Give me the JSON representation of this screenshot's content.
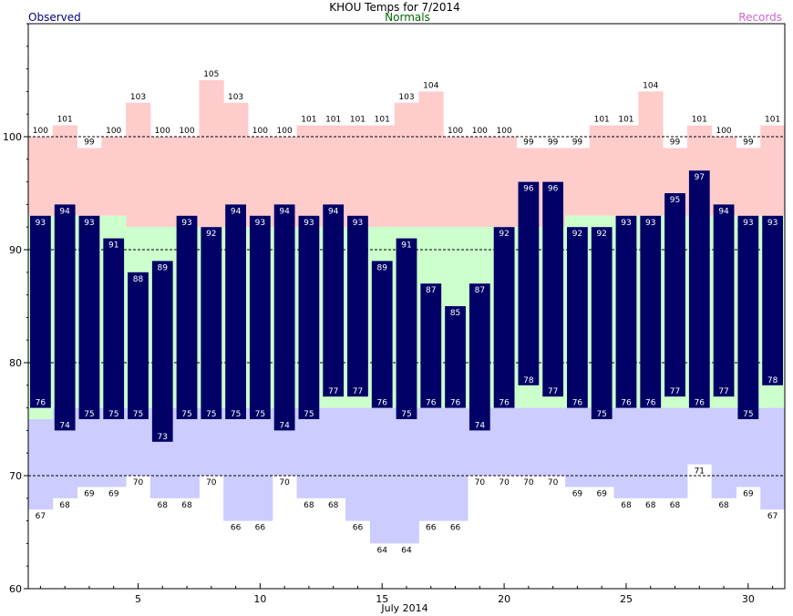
{
  "chart_data": {
    "type": "bar",
    "title": "KHOU Temps for 7/2014",
    "xlabel": "July 2014",
    "ylabel": "",
    "legend": {
      "observed": "Observed",
      "normals": "Normals",
      "records": "Records"
    },
    "ylim": [
      60,
      110
    ],
    "yticks": [
      60,
      70,
      80,
      90,
      100
    ],
    "xticks": [
      5,
      10,
      15,
      20,
      25,
      30
    ],
    "days": [
      1,
      2,
      3,
      4,
      5,
      6,
      7,
      8,
      9,
      10,
      11,
      12,
      13,
      14,
      15,
      16,
      17,
      18,
      19,
      20,
      21,
      22,
      23,
      24,
      25,
      26,
      27,
      28,
      29,
      30,
      31
    ],
    "series": [
      {
        "name": "Observed",
        "key": "obs_high",
        "values": [
          93,
          94,
          93,
          91,
          88,
          89,
          93,
          92,
          94,
          93,
          94,
          93,
          94,
          93,
          89,
          91,
          87,
          85,
          87,
          92,
          96,
          96,
          92,
          92,
          93,
          93,
          95,
          97,
          94,
          93,
          93
        ]
      },
      {
        "name": "Observed",
        "key": "obs_low",
        "values": [
          76,
          74,
          75,
          75,
          75,
          73,
          75,
          75,
          75,
          75,
          74,
          75,
          77,
          77,
          76,
          75,
          76,
          76,
          74,
          76,
          78,
          77,
          76,
          75,
          76,
          76,
          77,
          76,
          77,
          75,
          78
        ]
      },
      {
        "name": "Normals",
        "key": "norm_high",
        "values": [
          93,
          93,
          93,
          93,
          92,
          92,
          92,
          92,
          92,
          92,
          92,
          92,
          92,
          92,
          92,
          92,
          92,
          92,
          92,
          92,
          92,
          92,
          93,
          93,
          93,
          93,
          93,
          93,
          93,
          93,
          93
        ]
      },
      {
        "name": "Normals",
        "key": "norm_low",
        "values": [
          75,
          76,
          76,
          76,
          76,
          76,
          76,
          76,
          76,
          76,
          76,
          76,
          76,
          76,
          76,
          76,
          76,
          76,
          76,
          76,
          76,
          76,
          76,
          76,
          76,
          76,
          76,
          76,
          76,
          76,
          76
        ]
      },
      {
        "name": "Records",
        "key": "rec_high",
        "values": [
          100,
          101,
          99,
          100,
          103,
          100,
          100,
          105,
          103,
          100,
          100,
          101,
          101,
          101,
          101,
          103,
          104,
          100,
          100,
          100,
          99,
          99,
          99,
          101,
          101,
          104,
          99,
          101,
          100,
          99,
          101
        ]
      },
      {
        "name": "Records",
        "key": "rec_low",
        "values": [
          67,
          68,
          69,
          69,
          70,
          68,
          68,
          70,
          66,
          66,
          70,
          68,
          68,
          66,
          64,
          64,
          66,
          66,
          70,
          70,
          70,
          70,
          69,
          69,
          68,
          68,
          68,
          71,
          68,
          69,
          67
        ]
      }
    ],
    "grid": "dashed at 70, 80, 90, 100",
    "colors": {
      "observed": "#000066",
      "observed_label": "#000080",
      "normals_fill": "#ccffcc",
      "normals_label": "#006600",
      "record_high_fill": "#ffcccc",
      "record_low_fill": "#ccccff",
      "records_label": "#cc66cc"
    }
  }
}
